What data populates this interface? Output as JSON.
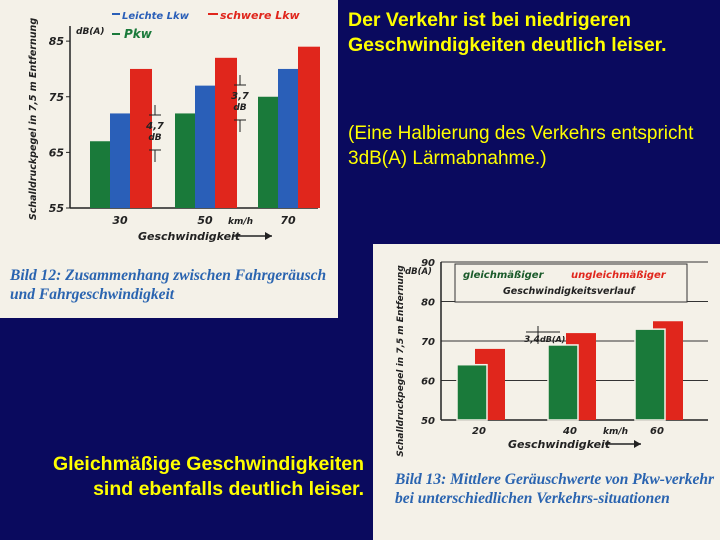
{
  "slide": {
    "headline": "Der Verkehr ist bei niedrigeren Geschwindigkeiten deutlich leiser.",
    "note": "(Eine Halbierung des Verkehrs entspricht 3dB(A) Lärmabnahme.)",
    "bottom_text": "Gleichmäßige Geschwindigkeiten sind ebenfalls deutlich leiser.",
    "colors": {
      "background": "#0a0a5e",
      "text": "#ffff00",
      "caption": "#2a64b0"
    }
  },
  "chart_data": [
    {
      "type": "bar",
      "caption": "Bild 12: Zusammenhang zwischen Fahrgeräusch und Fahrgeschwindigkeit",
      "categories": [
        "30",
        "50",
        "70"
      ],
      "category_unit": "km/h",
      "xlabel": "Geschwindigkeit",
      "ylabel": "Schalldruckpegel in 7,5 m Entfernung",
      "y_unit": "dB(A)",
      "yticks": [
        "55",
        "65",
        "75",
        "85"
      ],
      "ylim": [
        55,
        87
      ],
      "series": [
        {
          "name": "Pkw",
          "color": "#1a7a3a",
          "values": [
            67,
            72,
            75
          ]
        },
        {
          "name": "Leichte Lkw",
          "color": "#2a5fb8",
          "values": [
            72,
            77,
            80
          ]
        },
        {
          "name": "schwere Lkw",
          "color": "#e0261c",
          "values": [
            80,
            82,
            84
          ]
        }
      ],
      "annotations": [
        {
          "value": "4,7",
          "unit": "dB"
        },
        {
          "value": "3,7",
          "unit": "dB"
        }
      ],
      "legend": "top"
    },
    {
      "type": "bar",
      "caption": "Bild 13: Mittlere Geräuschwerte von Pkw-verkehr bei unterschiedlichen Verkehrs-situationen",
      "categories": [
        "20",
        "40",
        "60"
      ],
      "category_unit": "km/h",
      "xlabel": "Geschwindigkeit",
      "ylabel": "Schalldruckpegel in 7,5 m Entfernung",
      "y_unit": "dB(A)",
      "yticks": [
        "50",
        "60",
        "70",
        "80",
        "90"
      ],
      "ylim": [
        50,
        90
      ],
      "legend_suffix": "Geschwindigkeitsverlauf",
      "series": [
        {
          "name": "gleichmäßiger",
          "color": "#1a7a3a",
          "values": [
            64,
            69,
            73
          ]
        },
        {
          "name": "ungleichmäßiger",
          "color": "#e0261c",
          "values": [
            68,
            72,
            75
          ]
        }
      ],
      "annotations": [
        {
          "value": "3,4",
          "unit": "dB(A)"
        }
      ],
      "legend": "top"
    }
  ]
}
